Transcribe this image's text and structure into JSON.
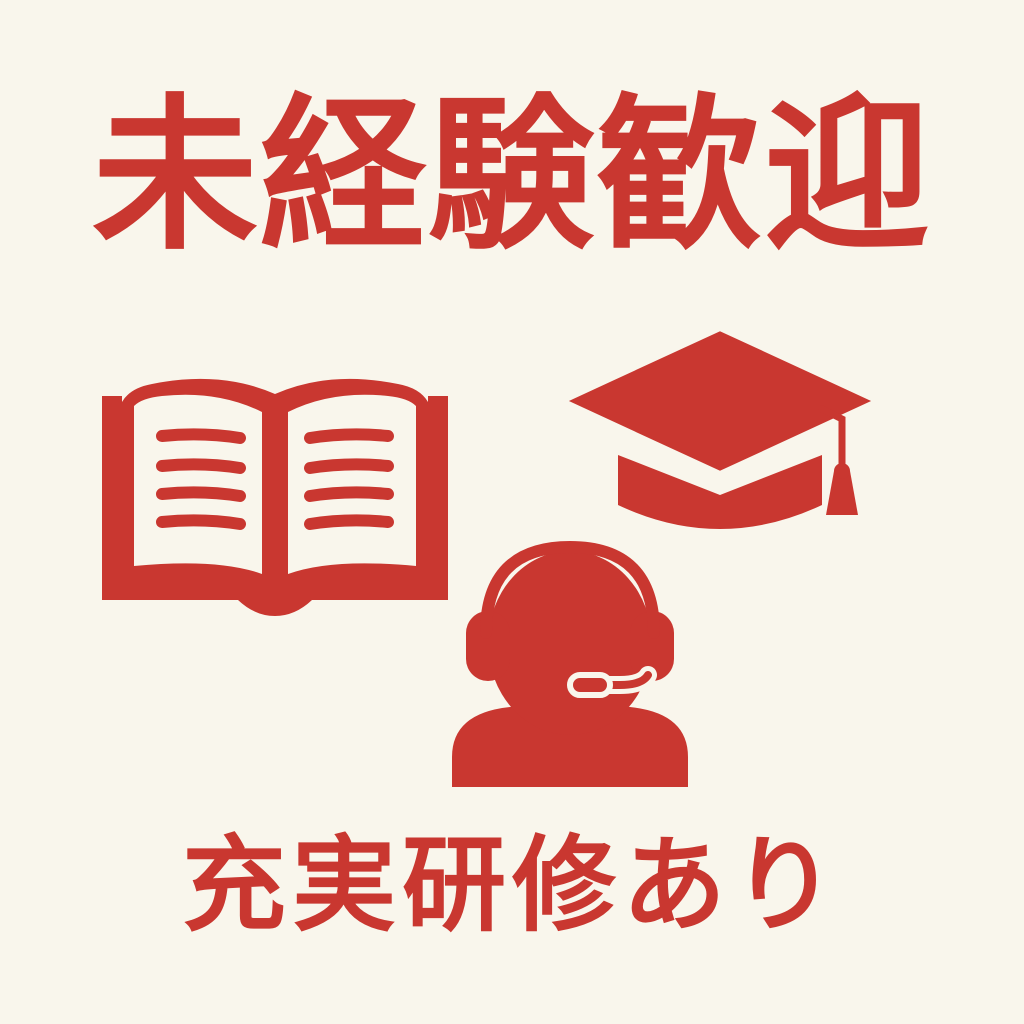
{
  "headline": "未経験歓迎",
  "subline": "充実研修あり",
  "colors": {
    "background": "#f9f6ec",
    "accent": "#c93730"
  },
  "icons": [
    "open-book-icon",
    "graduation-cap-icon",
    "headset-operator-icon"
  ]
}
